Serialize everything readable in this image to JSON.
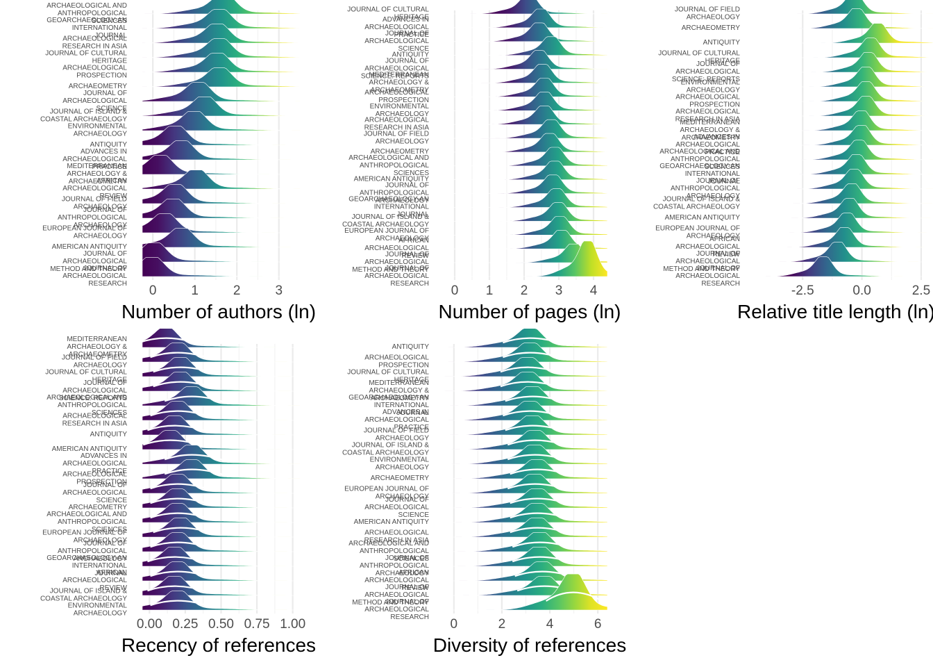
{
  "chart_data": [
    {
      "type": "ridgeline",
      "xlabel": "Number of authors (ln)",
      "xlim": [
        -0.25,
        3.5
      ],
      "xticks": [
        "0",
        "1",
        "2",
        "3"
      ],
      "xtick_values": [
        0,
        1,
        2,
        3
      ],
      "median_line": false,
      "categories": [
        "ARCHAEOLOGICAL AND ANTHROPOLOGICAL SCIENCES",
        "GEOARCHAEOLOGY-AN INTERNATIONAL JOURNAL",
        "ARCHAEOLOGICAL RESEARCH IN ASIA",
        "JOURNAL OF CULTURAL HERITAGE",
        "ARCHAEOLOGICAL PROSPECTION",
        "ARCHAEOMETRY",
        "JOURNAL OF ARCHAEOLOGICAL SCIENCE",
        "JOURNAL OF ISLAND & COASTAL ARCHAEOLOGY",
        "ENVIRONMENTAL ARCHAEOLOGY",
        "ANTIQUITY",
        "ADVANCES IN ARCHAEOLOGICAL PRACTICE",
        "MEDITERRANEAN ARCHAEOLOGY & ARCHAEOMETRY",
        "AFRICAN ARCHAEOLOGICAL REVIEW",
        "JOURNAL OF FIELD ARCHAEOLOGY",
        "JOURNAL OF ANTHROPOLOGICAL ARCHAEOLOGY",
        "EUROPEAN JOURNAL OF ARCHAEOLOGY",
        "AMERICAN ANTIQUITY",
        "JOURNAL OF ARCHAEOLOGICAL METHOD AND THEORY",
        "JOURNAL OF ARCHAEOLOGICAL RESEARCH"
      ],
      "modes": [
        1.7,
        1.6,
        1.55,
        1.6,
        1.55,
        1.6,
        1.1,
        1.25,
        1.0,
        0.55,
        0.7,
        0.2,
        1.05,
        0.55,
        0.5,
        0.3,
        0.7,
        0.05,
        0.0
      ],
      "peak_fill": [
        0.85,
        0.75,
        0.7,
        0.65,
        0.6,
        0.6,
        0.5,
        0.45,
        0.4,
        0.35,
        0.3,
        0.3,
        0.25,
        0.2,
        0.2,
        0.15,
        0.1,
        0.1,
        0.05
      ]
    },
    {
      "type": "ridgeline",
      "xlabel": "Number of pages (ln)",
      "xlim": [
        -0.3,
        4.4
      ],
      "xticks": [
        "0",
        "1",
        "2",
        "3",
        "4"
      ],
      "xtick_values": [
        0,
        1,
        2,
        3,
        4
      ],
      "median_line": false,
      "categories": [
        "JOURNAL OF CULTURAL HERITAGE",
        "ADVANCES IN ARCHAEOLOGICAL PRACTICE",
        "JOURNAL OF ARCHAEOLOGICAL SCIENCE",
        "ANTIQUITY",
        "JOURNAL OF ARCHAEOLOGICAL SCIENCE: REPORTS",
        "MEDITERRANEAN ARCHAEOLOGY & ARCHAEOMETRY",
        "ARCHAEOLOGICAL PROSPECTION",
        "ENVIRONMENTAL ARCHAEOLOGY",
        "ARCHAEOLOGICAL RESEARCH IN ASIA",
        "JOURNAL OF FIELD ARCHAEOLOGY",
        "ARCHAEOMETRY",
        "ARCHAEOLOGICAL AND ANTHROPOLOGICAL SCIENCES",
        "AMERICAN ANTIQUITY",
        "JOURNAL OF ANTHROPOLOGICAL ARCHAEOLOGY",
        "GEOARCHAEOLOGY-AN INTERNATIONAL JOURNAL",
        "JOURNAL OF ISLAND & COASTAL ARCHAEOLOGY",
        "EUROPEAN JOURNAL OF ARCHAEOLOGY",
        "AFRICAN ARCHAEOLOGICAL REVIEW",
        "JOURNAL OF ARCHAEOLOGICAL METHOD AND THEORY",
        "JOURNAL OF ARCHAEOLOGICAL RESEARCH"
      ],
      "modes": [
        2.15,
        2.5,
        2.45,
        2.8,
        2.45,
        2.55,
        2.6,
        2.6,
        2.6,
        2.8,
        2.75,
        2.9,
        2.9,
        2.85,
        2.95,
        3.0,
        3.05,
        3.1,
        3.45,
        3.85
      ],
      "peak_fill": [
        0.38,
        0.4,
        0.42,
        0.44,
        0.45,
        0.47,
        0.5,
        0.52,
        0.53,
        0.55,
        0.56,
        0.58,
        0.6,
        0.62,
        0.63,
        0.66,
        0.7,
        0.72,
        0.78,
        0.88
      ]
    },
    {
      "type": "ridgeline",
      "xlabel": "Relative title length (ln)",
      "xlim": [
        -4.5,
        3.0
      ],
      "xticks": [
        "-2.5",
        "0.0",
        "2.5"
      ],
      "xtick_values": [
        -2.5,
        0,
        2.5
      ],
      "median_line": false,
      "categories": [
        "JOURNAL OF FIELD ARCHAEOLOGY",
        "ARCHAEOMETRY",
        "ANTIQUITY",
        "JOURNAL OF CULTURAL HERITAGE",
        "JOURNAL OF ARCHAEOLOGICAL SCIENCE: REPORTS",
        "ENVIRONMENTAL ARCHAEOLOGY",
        "ARCHAEOLOGICAL PROSPECTION",
        "ARCHAEOLOGICAL RESEARCH IN ASIA",
        "MEDITERRANEAN ARCHAEOLOGY & ARCHAEOMETRY",
        "ADVANCES IN ARCHAEOLOGICAL PRACTICE",
        "ARCHAEOLOGICAL AND ANTHROPOLOGICAL SCIENCES",
        "GEOARCHAEOLOGY-AN INTERNATIONAL JOURNAL",
        "JOURNAL OF ANTHROPOLOGICAL ARCHAEOLOGY",
        "JOURNAL OF ISLAND & COASTAL ARCHAEOLOGY",
        "AMERICAN ANTIQUITY",
        "EUROPEAN JOURNAL OF ARCHAEOLOGY",
        "AFRICAN ARCHAEOLOGICAL REVIEW",
        "JOURNAL OF ARCHAEOLOGICAL METHOD AND THEORY",
        "JOURNAL OF ARCHAEOLOGICAL RESEARCH"
      ],
      "modes": [
        -0.3,
        -0.2,
        0.7,
        0.4,
        0.3,
        0.2,
        0.2,
        0.2,
        0.0,
        0.0,
        -0.1,
        -0.2,
        -0.3,
        -0.4,
        -0.5,
        -0.6,
        -0.7,
        -1.0,
        -1.6
      ],
      "peak_fill": [
        0.5,
        0.52,
        0.72,
        0.66,
        0.63,
        0.6,
        0.6,
        0.58,
        0.57,
        0.56,
        0.55,
        0.53,
        0.52,
        0.5,
        0.48,
        0.45,
        0.43,
        0.38,
        0.3
      ]
    },
    {
      "type": "ridgeline",
      "xlabel": "Recency of references",
      "xlim": [
        -0.05,
        1.05
      ],
      "xticks": [
        "0.00",
        "0.25",
        "0.50",
        "0.75",
        "1.00"
      ],
      "xtick_values": [
        0,
        0.25,
        0.5,
        0.75,
        1.0
      ],
      "median_line": true,
      "categories": [
        "MEDITERRANEAN ARCHAEOLOGY & ARCHAEOMETRY",
        "JOURNAL OF FIELD ARCHAEOLOGY",
        "JOURNAL OF CULTURAL HERITAGE",
        "JOURNAL OF ARCHAEOLOGICAL SCIENCE: REPORTS",
        "ARCHAEOLOGICAL AND ANTHROPOLOGICAL SCIENCES",
        "ARCHAEOLOGICAL RESEARCH IN ASIA",
        "ANTIQUITY",
        "AMERICAN ANTIQUITY",
        "ADVANCES IN ARCHAEOLOGICAL PRACTICE",
        "ARCHAEOLOGICAL PROSPECTION",
        "JOURNAL OF ARCHAEOLOGICAL SCIENCE",
        "ARCHAEOMETRY",
        "ARCHAEOLOGICAL AND ANTHROPOLOGICAL SCIENCES",
        "EUROPEAN JOURNAL OF ARCHAEOLOGY",
        "JOURNAL OF ANTHROPOLOGICAL ARCHAEOLOGY",
        "GEOARCHAEOLOGY-AN INTERNATIONAL JOURNAL",
        "AFRICAN ARCHAEOLOGICAL REVIEW",
        "JOURNAL OF ISLAND & COASTAL ARCHAEOLOGY",
        "ENVIRONMENTAL ARCHAEOLOGY"
      ],
      "modes": [
        0.12,
        0.2,
        0.22,
        0.22,
        0.3,
        0.2,
        0.18,
        0.15,
        0.3,
        0.3,
        0.2,
        0.2,
        0.2,
        0.22,
        0.2,
        0.18,
        0.2,
        0.18,
        0.2
      ],
      "peak_fill": [
        0.15,
        0.3,
        0.4,
        0.2,
        0.3,
        0.2,
        0.25,
        0.15,
        0.55,
        0.3,
        0.25,
        0.2,
        0.25,
        0.15,
        0.2,
        0.15,
        0.15,
        0.15,
        0.15
      ]
    },
    {
      "type": "ridgeline",
      "xlabel": "Diversity of references",
      "xlim": [
        -0.4,
        6.4
      ],
      "xticks": [
        "0",
        "2",
        "4",
        "6"
      ],
      "xtick_values": [
        0,
        2,
        4,
        6
      ],
      "median_line": true,
      "categories": [
        "ANTIQUITY",
        "ARCHAEOLOGICAL PROSPECTION",
        "JOURNAL OF CULTURAL HERITAGE",
        "MEDITERRANEAN ARCHAEOLOGY & ARCHAEOMETRY",
        "GEOARCHAEOLOGY-AN INTERNATIONAL JOURNAL",
        "ADVANCES IN ARCHAEOLOGICAL PRACTICE",
        "JOURNAL OF FIELD ARCHAEOLOGY",
        "JOURNAL OF ISLAND & COASTAL ARCHAEOLOGY",
        "ENVIRONMENTAL ARCHAEOLOGY",
        "ARCHAEOMETRY",
        "EUROPEAN JOURNAL OF ARCHAEOLOGY",
        "JOURNAL OF ARCHAEOLOGICAL SCIENCE",
        "AMERICAN ANTIQUITY",
        "ARCHAEOLOGICAL RESEARCH IN ASIA",
        "ARCHAEOLOGICAL AND ANTHROPOLOGICAL SCIENCES",
        "JOURNAL OF ANTHROPOLOGICAL ARCHAEOLOGY",
        "AFRICAN ARCHAEOLOGICAL REVIEW",
        "JOURNAL OF ARCHAEOLOGICAL METHOD AND THEORY",
        "JOURNAL OF ARCHAEOLOGICAL RESEARCH"
      ],
      "modes": [
        3.2,
        3.2,
        3.1,
        3.1,
        3.3,
        3.2,
        3.3,
        3.4,
        3.4,
        3.5,
        3.4,
        3.5,
        3.5,
        3.5,
        3.6,
        3.6,
        3.7,
        3.8,
        5.0
      ],
      "peak_fill": [
        0.5,
        0.52,
        0.5,
        0.5,
        0.54,
        0.54,
        0.56,
        0.58,
        0.58,
        0.6,
        0.58,
        0.6,
        0.6,
        0.6,
        0.62,
        0.62,
        0.64,
        0.66,
        0.9
      ]
    }
  ]
}
